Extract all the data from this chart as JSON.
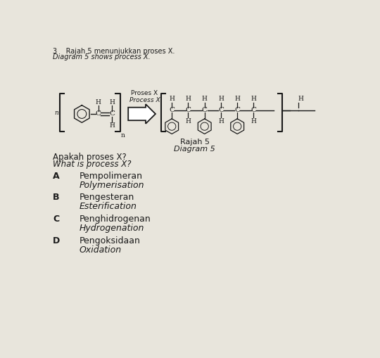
{
  "title_line1": "3    Rajah 5 menunjukkan proses X.",
  "title_line2": "Diagram 5 shows process X.",
  "diagram_label1": "Rajah 5",
  "diagram_label2": "Diagram 5",
  "process_label1": "Proses X",
  "process_label2": "Process X",
  "question_line1": "Apakah proses X?",
  "question_line2": "What is process X?",
  "options": [
    {
      "letter": "A",
      "text1": "Pempolimeran",
      "text2": "Polymerisation"
    },
    {
      "letter": "B",
      "text1": "Pengesteran",
      "text2": "Esterification"
    },
    {
      "letter": "C",
      "text1": "Penghidrogenan",
      "text2": "Hydrogenation"
    },
    {
      "letter": "D",
      "text1": "Pengoksidaan",
      "text2": "Oxidation"
    }
  ],
  "bg_color": "#e8e5dc",
  "text_color": "#1a1a1a",
  "diagram_area_bg": "#f0ede4",
  "n_label": "n",
  "left_prefix": "n"
}
